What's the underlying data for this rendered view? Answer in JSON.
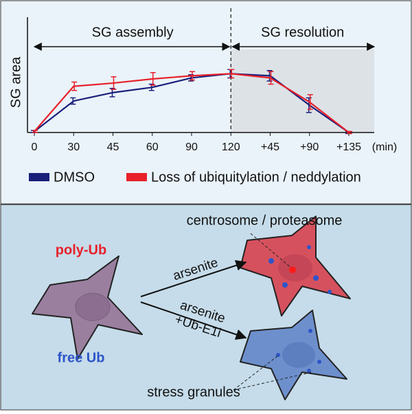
{
  "chart_data": {
    "type": "line",
    "y_label": "SG area",
    "x_label": "(min)",
    "phase_labels": [
      "SG assembly",
      "SG resolution"
    ],
    "categories": [
      "0",
      "30",
      "45",
      "60",
      "90",
      "120",
      "+45",
      "+90",
      "+135"
    ],
    "ylim": [
      0,
      1
    ],
    "series": [
      {
        "name": "DMSO",
        "color": "#1a1f7a",
        "values": [
          0.01,
          0.3,
          0.38,
          0.43,
          0.52,
          0.56,
          0.54,
          0.26,
          0
        ],
        "errors": [
          0.01,
          0.03,
          0.04,
          0.03,
          0.03,
          0.04,
          0.05,
          0.07,
          0.01
        ]
      },
      {
        "name": "Loss of ubiquitylation / neddylation",
        "color": "#e8202a",
        "values": [
          0.01,
          0.44,
          0.47,
          0.51,
          0.54,
          0.56,
          0.52,
          0.29,
          0
        ],
        "errors": [
          0.01,
          0.04,
          0.06,
          0.06,
          0.04,
          0.04,
          0.06,
          0.07,
          0.01
        ]
      }
    ]
  },
  "diagram": {
    "top_label": "centrosome / proteasome",
    "poly_label": "poly-Ub",
    "free_label": "free Ub",
    "arrow1": "arsenite",
    "arrow2": [
      "arsenite",
      "+Ub-E1i"
    ],
    "bottom_label": "stress granules"
  }
}
